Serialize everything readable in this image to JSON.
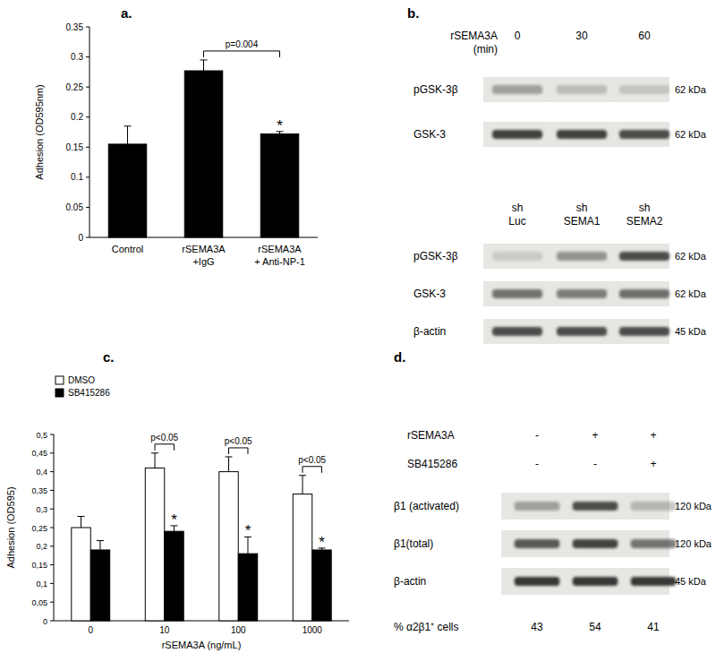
{
  "chart_data": [
    {
      "type": "bar",
      "title": "a.",
      "categories": [
        "Control",
        "rSEMA3A\n+IgG",
        "rSEMA3A\n+ Anti-NP-1"
      ],
      "values": [
        0.155,
        0.277,
        0.172
      ],
      "errors": [
        0.03,
        0.018,
        0.004
      ],
      "color": "#000000",
      "y_label": "Adhesion (OD595nm)",
      "ylim": [
        0,
        0.35
      ],
      "yticks": [
        0,
        0.05,
        0.1,
        0.15,
        0.2,
        0.25,
        0.3,
        0.35
      ],
      "grid": false,
      "annotations": [
        {
          "text": "p=0.004",
          "bars": [
            [
              1,
              0
            ],
            [
              2,
              0
            ]
          ]
        },
        {
          "text": "*",
          "bars": [
            [
              2,
              0
            ]
          ]
        }
      ]
    },
    {
      "type": "bar",
      "title": "c.",
      "categories": [
        "0",
        "10",
        "100",
        "1000"
      ],
      "x_label": "rSEMA3A (ng/mL)",
      "y_label": "Adhesion (OD595)",
      "series": [
        {
          "name": "DMSO",
          "color": "#ffffff",
          "values": [
            0.25,
            0.41,
            0.4,
            0.34
          ],
          "errors": [
            0.03,
            0.04,
            0.04,
            0.05
          ]
        },
        {
          "name": "SB415286",
          "color": "#000000",
          "values": [
            0.19,
            0.24,
            0.18,
            0.19
          ],
          "errors": [
            0.025,
            0.015,
            0.045,
            0.005
          ]
        }
      ],
      "ylim": [
        0,
        0.5
      ],
      "yticks": [
        0,
        {
          "value": 0.05,
          "label": "0,05"
        },
        {
          "value": 0.1,
          "label": "0,1"
        },
        {
          "value": 0.15,
          "label": "0,15"
        },
        {
          "value": 0.2,
          "label": "0,2"
        },
        {
          "value": 0.25,
          "label": "0,25"
        },
        {
          "value": 0.3,
          "label": "0,3"
        },
        {
          "value": 0.35,
          "label": "0,35"
        },
        {
          "value": 0.4,
          "label": "0,4"
        },
        {
          "value": 0.45,
          "label": "0,45"
        },
        {
          "value": 0.5,
          "label": "0,5"
        }
      ],
      "grid": false,
      "legend": "top-left",
      "annotations": [
        {
          "text": "p<0.05",
          "bars": [
            [
              1,
              0
            ],
            [
              1,
              1
            ]
          ]
        },
        {
          "text": "p<0.05",
          "bars": [
            [
              2,
              0
            ],
            [
              2,
              1
            ]
          ]
        },
        {
          "text": "p<0.05",
          "bars": [
            [
              3,
              0
            ],
            [
              3,
              1
            ]
          ]
        },
        {
          "text": "*",
          "bars": [
            [
              1,
              1
            ]
          ]
        },
        {
          "text": "*",
          "bars": [
            [
              2,
              1
            ]
          ]
        },
        {
          "text": "*",
          "bars": [
            [
              3,
              1
            ]
          ]
        }
      ]
    }
  ],
  "blots": [
    {
      "panel": "b.",
      "header": [
        {
          "label": "rSEMA3A\n(min)",
          "values": [
            "0",
            "30",
            "60"
          ]
        }
      ],
      "rows": [
        {
          "label": "pGSK-3β",
          "size": "62 kDa",
          "bands": [
            0.35,
            0.22,
            0.15
          ]
        },
        {
          "label": "GSK-3",
          "size": "62 kDa",
          "bands": [
            0.8,
            0.8,
            0.75
          ]
        }
      ]
    },
    {
      "header": [
        {
          "values": [
            "sh\nLuc",
            "sh\nSEMA1",
            "sh\nSEMA2"
          ]
        }
      ],
      "rows": [
        {
          "label": "pGSK-3β",
          "size": "62 kDa",
          "bands": [
            0.12,
            0.4,
            0.75
          ]
        },
        {
          "label": "GSK-3",
          "size": "62 kDa",
          "bands": [
            0.55,
            0.5,
            0.6
          ]
        },
        {
          "label": "β-actin",
          "size": "45 kDa",
          "bands": [
            0.75,
            0.75,
            0.75
          ]
        }
      ]
    },
    {
      "panel": "d.",
      "header": [
        {
          "label": "rSEMA3A",
          "values": [
            "-",
            "+",
            "+"
          ]
        },
        {
          "label": "SB415286",
          "values": [
            "-",
            "-",
            "+"
          ]
        }
      ],
      "rows": [
        {
          "label": "β1 (activated)",
          "size": "120 kDa",
          "bands": [
            0.35,
            0.75,
            0.25
          ]
        },
        {
          "label": "β1(total)",
          "size": "120 kDa",
          "bands": [
            0.7,
            0.8,
            0.55
          ]
        },
        {
          "label": "β-actin",
          "size": "45 kDa",
          "bands": [
            0.85,
            0.85,
            0.85
          ]
        }
      ],
      "footer": {
        "label": "% α2β1⁺ cells",
        "values": [
          43,
          54,
          41
        ]
      }
    }
  ]
}
